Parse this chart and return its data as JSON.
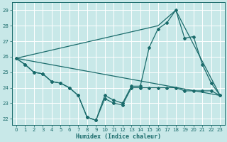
{
  "xlabel": "Humidex (Indice chaleur)",
  "background_color": "#c8e8e8",
  "grid_color": "#ffffff",
  "line_color": "#1a6b6b",
  "xlim": [
    -0.5,
    23.5
  ],
  "ylim": [
    21.6,
    29.5
  ],
  "xticks": [
    0,
    1,
    2,
    3,
    4,
    5,
    6,
    7,
    8,
    9,
    10,
    11,
    12,
    13,
    14,
    15,
    16,
    17,
    18,
    19,
    20,
    21,
    22,
    23
  ],
  "yticks": [
    22,
    23,
    24,
    25,
    26,
    27,
    28,
    29
  ],
  "line1_x": [
    0,
    1,
    2,
    3,
    4,
    5,
    6,
    7,
    8,
    9,
    10,
    11,
    12,
    13,
    14,
    15,
    16,
    17,
    18,
    19,
    20,
    21,
    22,
    23
  ],
  "line1_y": [
    25.9,
    25.5,
    25.0,
    24.9,
    24.4,
    24.3,
    24.0,
    23.5,
    22.1,
    21.9,
    23.3,
    23.0,
    22.9,
    24.0,
    24.0,
    24.0,
    24.0,
    24.0,
    24.0,
    23.8,
    23.8,
    23.8,
    23.8,
    23.5
  ],
  "line2_x": [
    0,
    1,
    2,
    3,
    4,
    5,
    6,
    7,
    8,
    9,
    10,
    11,
    12,
    13,
    14,
    15,
    16,
    17,
    18,
    19,
    20,
    21,
    22,
    23
  ],
  "line2_y": [
    25.9,
    25.5,
    25.0,
    24.9,
    24.4,
    24.3,
    24.0,
    23.5,
    22.1,
    21.9,
    23.5,
    23.2,
    23.0,
    24.1,
    24.1,
    26.6,
    27.8,
    28.2,
    29.0,
    27.2,
    27.3,
    25.5,
    24.3,
    23.5
  ],
  "line3_x": [
    0,
    23
  ],
  "line3_y": [
    25.9,
    23.5
  ],
  "line4_x": [
    0,
    16,
    18,
    23
  ],
  "line4_y": [
    25.9,
    28.0,
    29.0,
    23.5
  ]
}
